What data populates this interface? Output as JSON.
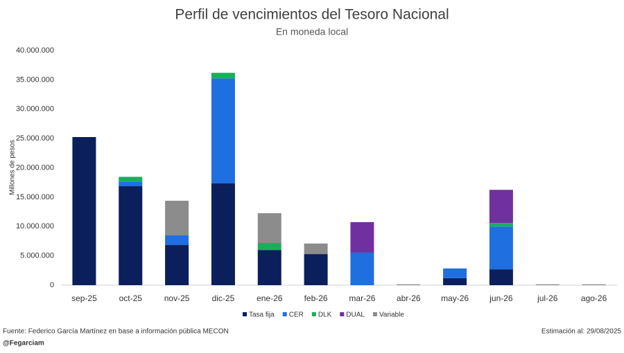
{
  "chart_data": {
    "type": "stacked_bar",
    "title": "Perfil de vencimientos del Tesoro Nacional",
    "subtitle": "En moneda local",
    "y_label": "Millones de pesos",
    "source": "Fuente: Federico García Martínez en base a información pública MECON",
    "author": "@Fegarciam",
    "note": "Estimación al: 29/08/2025",
    "categories": [
      "sep-25",
      "oct-25",
      "nov-25",
      "dic-25",
      "ene-26",
      "feb-26",
      "mar-26",
      "abr-26",
      "may-26",
      "jun-26",
      "jul-26",
      "ago-26"
    ],
    "series": [
      {
        "name": "Tasa fija",
        "color": "#0b1f5c",
        "values": [
          25250000,
          16870000,
          6840000,
          17350000,
          6000000,
          5300000,
          0,
          0,
          1200000,
          2700000,
          0,
          0
        ]
      },
      {
        "name": "CER",
        "color": "#1f6fe0",
        "values": [
          0,
          800000,
          1650000,
          17900000,
          0,
          0,
          5550000,
          0,
          1650000,
          7300000,
          0,
          0
        ]
      },
      {
        "name": "DLK",
        "color": "#17b05a",
        "values": [
          0,
          800000,
          0,
          950000,
          1200000,
          0,
          0,
          0,
          0,
          600000,
          0,
          0
        ]
      },
      {
        "name": "DUAL",
        "color": "#7030a0",
        "values": [
          0,
          0,
          0,
          0,
          0,
          0,
          5200000,
          0,
          0,
          5650000,
          0,
          0
        ]
      },
      {
        "name": "Variable",
        "color": "#8c8c8c",
        "values": [
          0,
          0,
          5900000,
          0,
          5070000,
          1800000,
          0,
          150000,
          0,
          0,
          150000,
          150000
        ]
      }
    ],
    "ylim": [
      0,
      40000000
    ],
    "yticks": [
      {
        "value": 0,
        "label": "0"
      },
      {
        "value": 5000000,
        "label": "5.000.000"
      },
      {
        "value": 10000000,
        "label": "10.000.000"
      },
      {
        "value": 15000000,
        "label": "15.000.000"
      },
      {
        "value": 20000000,
        "label": "20.000.000"
      },
      {
        "value": 25000000,
        "label": "25.000.000"
      },
      {
        "value": 30000000,
        "label": "30.000.000"
      },
      {
        "value": 35000000,
        "label": "35.000.000"
      },
      {
        "value": 40000000,
        "label": "40.000.000"
      }
    ],
    "legend": "bottom"
  }
}
